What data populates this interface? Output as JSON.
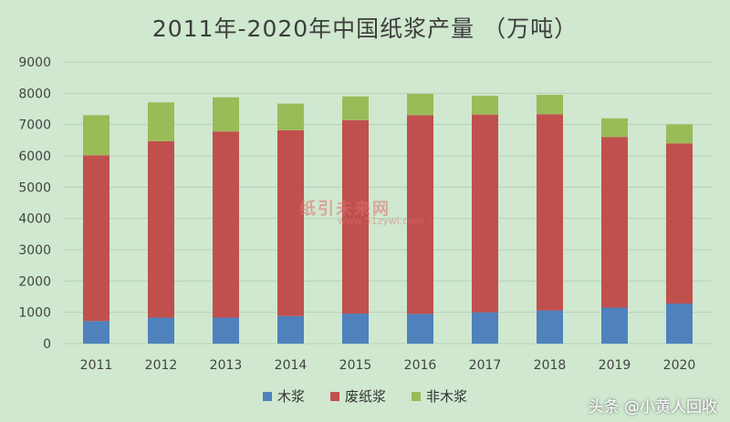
{
  "chart_data": {
    "type": "bar",
    "stacked": true,
    "title": "2011年-2020年中国纸浆产量 （万吨）",
    "categories": [
      "2011",
      "2012",
      "2013",
      "2014",
      "2015",
      "2016",
      "2017",
      "2018",
      "2019",
      "2020"
    ],
    "series": [
      {
        "name": "木浆",
        "color": "#4f81bd",
        "values": [
          720,
          830,
          830,
          880,
          960,
          950,
          1000,
          1060,
          1150,
          1280
        ]
      },
      {
        "name": "废纸浆",
        "color": "#c0504d",
        "values": [
          5300,
          5640,
          5950,
          5940,
          6180,
          6350,
          6320,
          6270,
          5450,
          5120
        ]
      },
      {
        "name": "非木浆",
        "color": "#9bbb59",
        "values": [
          1280,
          1240,
          1090,
          850,
          760,
          680,
          600,
          620,
          600,
          610
        ]
      }
    ],
    "ylim": [
      0,
      9000
    ],
    "yticks": [
      0,
      1000,
      2000,
      3000,
      4000,
      5000,
      6000,
      7000,
      8000,
      9000
    ],
    "grid": true,
    "legend_position": "bottom"
  },
  "watermark": {
    "text": "纸引未来网",
    "url": "www.51zywl.com"
  },
  "credit": "头条 @小黄人回收"
}
